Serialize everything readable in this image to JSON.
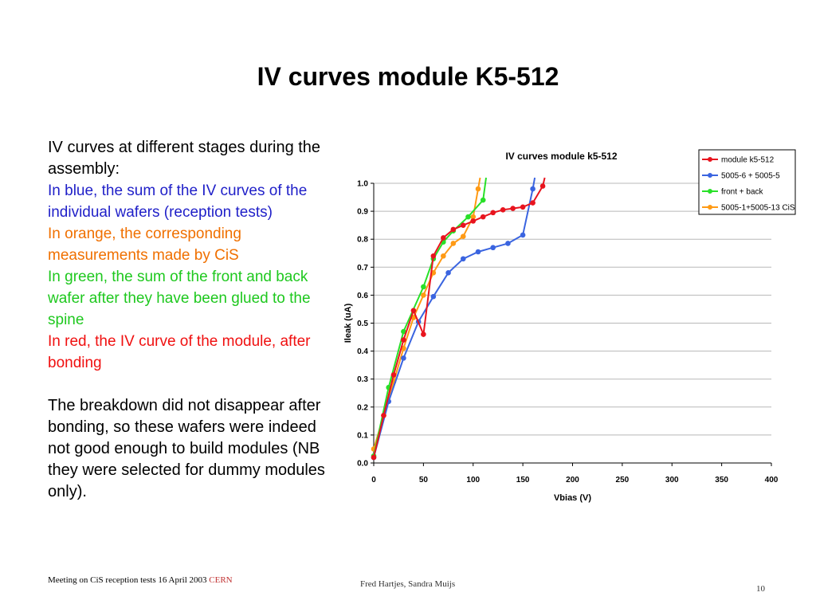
{
  "slide": {
    "title": "IV curves module K5-512",
    "intro": "IV curves at different stages during the assembly:",
    "blue_text": "In blue, the sum of the IV curves of the individual wafers (reception tests)",
    "orange_text": "In orange, the corresponding measurements made by CiS",
    "green_text": "In green, the sum of the front and back wafer after they have been glued to the spine",
    "red_text": "In red, the IV curve of the module, after bonding",
    "conclusion": "The breakdown did not disappear after bonding, so these wafers were indeed not good enough to build modules (NB they were selected for dummy modules only).",
    "footer_left": "Meeting on CiS reception tests 16 April 2003",
    "footer_left_link": "CERN",
    "footer_mid": "Fred Hartjes, Sandra Muijs",
    "page_number": "10"
  },
  "chart_data": {
    "type": "line",
    "title": "IV curves module k5-512",
    "xlabel": "Vbias (V)",
    "ylabel": "Ileak (uA)",
    "xlim": [
      0,
      400
    ],
    "ylim": [
      0,
      1.0
    ],
    "x_ticks": [
      "0",
      "50",
      "100",
      "150",
      "200",
      "250",
      "300",
      "350",
      "400"
    ],
    "y_ticks": [
      "0.0",
      "0.1",
      "0.2",
      "0.3",
      "0.4",
      "0.5",
      "0.6",
      "0.7",
      "0.8",
      "0.9",
      "1.0"
    ],
    "grid": "horizontal",
    "legend_position": "top-right",
    "series": [
      {
        "name": "module k5-512",
        "color": "#e8141e",
        "x": [
          0,
          10,
          20,
          30,
          40,
          50,
          60,
          70,
          80,
          90,
          100,
          110,
          120,
          130,
          140,
          150,
          160,
          170,
          172
        ],
        "y": [
          0.02,
          0.17,
          0.315,
          0.44,
          0.545,
          0.46,
          0.74,
          0.805,
          0.835,
          0.85,
          0.865,
          0.88,
          0.895,
          0.905,
          0.91,
          0.915,
          0.93,
          0.99,
          1.02
        ]
      },
      {
        "name": "5005-6 + 5005-5",
        "color": "#3a64e0",
        "x": [
          0,
          15,
          30,
          45,
          60,
          75,
          90,
          105,
          120,
          135,
          150,
          160,
          162
        ],
        "y": [
          0.02,
          0.22,
          0.375,
          0.505,
          0.595,
          0.68,
          0.73,
          0.755,
          0.77,
          0.785,
          0.815,
          0.98,
          1.02
        ]
      },
      {
        "name": "front + back",
        "color": "#28e028",
        "x": [
          0,
          15,
          30,
          50,
          60,
          70,
          80,
          95,
          110,
          113
        ],
        "y": [
          0.025,
          0.27,
          0.47,
          0.63,
          0.73,
          0.79,
          0.83,
          0.88,
          0.94,
          1.02
        ]
      },
      {
        "name": "5005-1+5005-13 CiS",
        "color": "#ff9a14",
        "x": [
          0,
          10,
          20,
          30,
          40,
          50,
          60,
          70,
          80,
          90,
          100,
          105,
          107
        ],
        "y": [
          0.05,
          0.17,
          0.29,
          0.41,
          0.52,
          0.6,
          0.68,
          0.74,
          0.785,
          0.81,
          0.88,
          0.98,
          1.02
        ]
      }
    ]
  }
}
